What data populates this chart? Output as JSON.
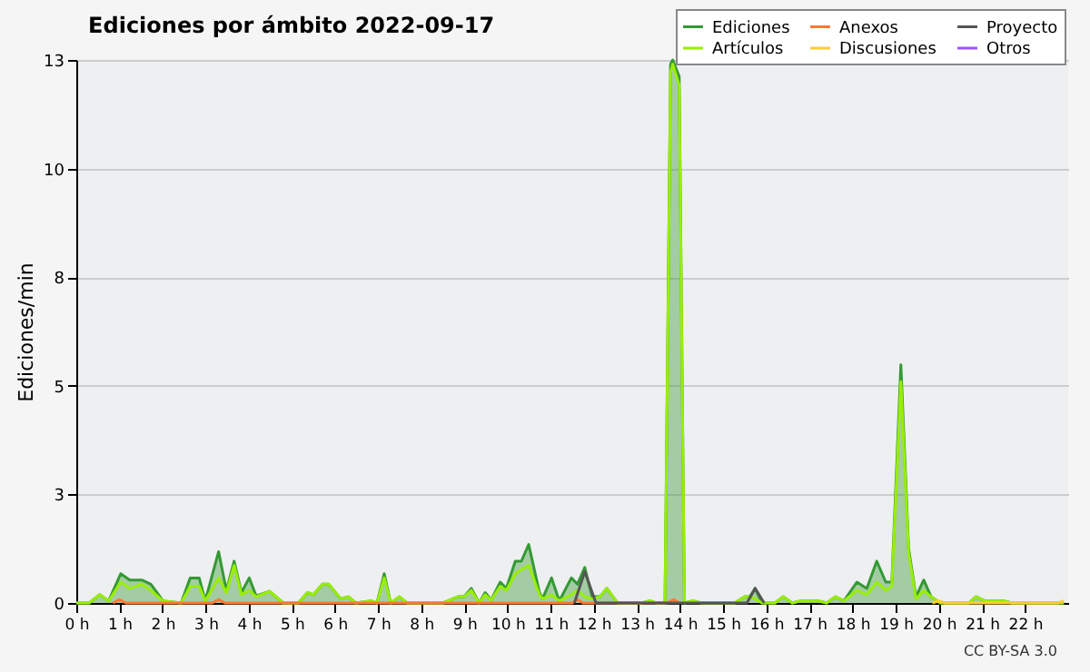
{
  "chart_data": {
    "type": "line",
    "title": "Ediciones por ámbito  2022-09-17",
    "ylabel": "Ediciones/min",
    "annotations": [
      "CC BY-SA 3.0"
    ],
    "xlim": [
      0,
      23
    ],
    "xticks": [
      {
        "value": 0,
        "label": "0 h"
      },
      {
        "value": 1,
        "label": "1 h"
      },
      {
        "value": 2,
        "label": "2 h"
      },
      {
        "value": 3,
        "label": "3 h"
      },
      {
        "value": 4,
        "label": "4 h"
      },
      {
        "value": 5,
        "label": "5 h"
      },
      {
        "value": 6,
        "label": "6 h"
      },
      {
        "value": 7,
        "label": "7 h"
      },
      {
        "value": 8,
        "label": "8 h"
      },
      {
        "value": 9,
        "label": "9 h"
      },
      {
        "value": 10,
        "label": "10 h"
      },
      {
        "value": 11,
        "label": "11 h"
      },
      {
        "value": 12,
        "label": "12 h"
      },
      {
        "value": 13,
        "label": "13 h"
      },
      {
        "value": 14,
        "label": "14 h"
      },
      {
        "value": 15,
        "label": "15 h"
      },
      {
        "value": 16,
        "label": "16 h"
      },
      {
        "value": 17,
        "label": "17 h"
      },
      {
        "value": 18,
        "label": "18 h"
      },
      {
        "value": 19,
        "label": "19 h"
      },
      {
        "value": 20,
        "label": "20 h"
      },
      {
        "value": 21,
        "label": "21 h"
      },
      {
        "value": 22,
        "label": "22 h"
      }
    ],
    "ylim": [
      0,
      13
    ],
    "yticks": [
      0,
      {
        "value": 2.6,
        "label": "3"
      },
      {
        "value": 5.2,
        "label": "5"
      },
      {
        "value": 7.8,
        "label": "8"
      },
      {
        "value": 10.4,
        "label": "10"
      },
      13
    ],
    "grid": "y",
    "legend": "top right",
    "series": [
      {
        "name": "Ediciones",
        "type": "area",
        "color": "#339933",
        "x": [
          0,
          0.3,
          0.54,
          0.75,
          1.03,
          1.24,
          1.52,
          1.73,
          2.01,
          2.43,
          2.64,
          2.85,
          2.99,
          3.3,
          3.48,
          3.66,
          3.83,
          4.01,
          4.17,
          4.48,
          4.8,
          5.15,
          5.36,
          5.5,
          5.71,
          5.85,
          6.13,
          6.31,
          6.48,
          6.83,
          6.97,
          7.14,
          7.29,
          7.49,
          7.67,
          8.5,
          8.85,
          8.99,
          9.16,
          9.34,
          9.48,
          9.62,
          9.83,
          9.97,
          10.18,
          10.32,
          10.49,
          10.74,
          10.81,
          11.02,
          11.2,
          11.48,
          11.62,
          11.79,
          11.96,
          12.14,
          12.3,
          12.55,
          13.11,
          13.29,
          13.46,
          13.65,
          13.78,
          13.83,
          13.98,
          14.1,
          14.3,
          14.5,
          15.27,
          15.5,
          15.62,
          15.74,
          15.9,
          16.2,
          16.39,
          16.6,
          16.8,
          17.2,
          17.4,
          17.6,
          17.8,
          18.1,
          18.33,
          18.56,
          18.77,
          18.91,
          19.12,
          19.3,
          19.47,
          19.65,
          19.82,
          20.03,
          20.7,
          20.86,
          21.07,
          21.5,
          21.7,
          22.9
        ],
        "values": [
          0,
          0,
          0.2,
          0.05,
          0.7,
          0.55,
          0.55,
          0.45,
          0.05,
          0,
          0.6,
          0.6,
          0.05,
          1.23,
          0.3,
          1.0,
          0.25,
          0.6,
          0.17,
          0.28,
          0,
          0,
          0.25,
          0.2,
          0.45,
          0.45,
          0.1,
          0.15,
          0,
          0.05,
          0,
          0.7,
          0,
          0.15,
          0,
          0,
          0.15,
          0.15,
          0.35,
          0,
          0.25,
          0.07,
          0.5,
          0.35,
          1.0,
          1.0,
          1.4,
          0.25,
          0.1,
          0.6,
          0.05,
          0.6,
          0.45,
          0.85,
          0.15,
          0.15,
          0.35,
          0,
          0,
          0.05,
          0,
          0,
          12.9,
          13,
          12.6,
          0,
          0.05,
          0,
          0,
          0.15,
          0.15,
          0.35,
          0,
          0,
          0.15,
          0,
          0.05,
          0.05,
          0,
          0.15,
          0.05,
          0.5,
          0.35,
          1.0,
          0.5,
          0.5,
          5.7,
          1.3,
          0.15,
          0.55,
          0.15,
          0,
          0,
          0.15,
          0.05,
          0.05,
          0,
          0
        ]
      },
      {
        "name": "Artículos",
        "color": "#99ee00",
        "x": [
          0,
          0.3,
          0.54,
          0.75,
          1.03,
          1.24,
          1.52,
          1.73,
          2.01,
          2.43,
          2.64,
          2.85,
          2.99,
          3.3,
          3.48,
          3.66,
          3.83,
          4.01,
          4.17,
          4.48,
          4.8,
          5.15,
          5.36,
          5.5,
          5.71,
          5.85,
          6.13,
          6.31,
          6.48,
          6.83,
          6.97,
          7.14,
          7.29,
          7.49,
          7.67,
          8.5,
          8.85,
          8.99,
          9.16,
          9.34,
          9.48,
          9.62,
          9.83,
          9.97,
          10.18,
          10.32,
          10.49,
          10.74,
          10.81,
          11.02,
          11.2,
          11.48,
          11.62,
          11.79,
          11.96,
          12.14,
          12.3,
          12.55,
          13.11,
          13.29,
          13.46,
          13.65,
          13.78,
          13.83,
          13.98,
          14.1,
          14.3,
          14.5,
          15.27,
          15.5,
          15.62,
          15.74,
          15.9,
          16.2,
          16.39,
          16.6,
          16.8,
          17.2,
          17.4,
          17.6,
          17.8,
          18.1,
          18.33,
          18.56,
          18.77,
          18.91,
          19.12,
          19.3,
          19.47,
          19.65,
          19.82,
          20.03,
          20.7,
          20.86,
          21.07,
          21.5,
          21.7,
          22.9
        ],
        "values": [
          0,
          0,
          0.2,
          0.05,
          0.5,
          0.35,
          0.45,
          0.3,
          0.05,
          0,
          0.4,
          0.4,
          0.05,
          0.6,
          0.25,
          0.9,
          0.2,
          0.3,
          0.15,
          0.28,
          0,
          0,
          0.25,
          0.2,
          0.45,
          0.45,
          0.1,
          0.15,
          0,
          0.05,
          0,
          0.6,
          0,
          0.15,
          0,
          0,
          0.15,
          0.15,
          0.3,
          0,
          0.2,
          0.07,
          0.4,
          0.3,
          0.7,
          0.8,
          0.9,
          0.2,
          0.1,
          0.2,
          0.05,
          0.2,
          0.3,
          0.15,
          0.1,
          0.15,
          0.35,
          0,
          0,
          0.05,
          0,
          0,
          12.7,
          12.9,
          12.4,
          0,
          0.05,
          0,
          0,
          0.15,
          0.15,
          0.1,
          0,
          0,
          0.15,
          0,
          0.05,
          0.05,
          0,
          0.15,
          0.05,
          0.3,
          0.2,
          0.5,
          0.3,
          0.4,
          5.3,
          1.2,
          0.1,
          0.3,
          0.15,
          0,
          0,
          0.15,
          0.05,
          0.05,
          0,
          0
        ]
      },
      {
        "name": "Anexos",
        "color": "#ff7733",
        "x": [
          0.85,
          1.0,
          1.15,
          3.15,
          3.3,
          3.45,
          11.5,
          11.62,
          11.75,
          13.7,
          13.85,
          14.0
        ],
        "values": [
          0,
          0.08,
          0,
          0,
          0.08,
          0,
          0,
          0.08,
          0,
          0,
          0.08,
          0
        ]
      },
      {
        "name": "Discusiones",
        "color": "#ffcc33",
        "x": [
          19.85,
          20.0,
          20.15,
          22.75,
          22.9
        ],
        "values": [
          0,
          0.05,
          0,
          0,
          0.05
        ]
      },
      {
        "name": "Proyecto",
        "color": "#555555",
        "x": [
          11.55,
          11.79,
          12.05,
          15.55,
          15.74,
          15.95
        ],
        "values": [
          0,
          0.75,
          0,
          0,
          0.35,
          0
        ]
      },
      {
        "name": "Otros",
        "color": "#9955ff"
      }
    ]
  }
}
